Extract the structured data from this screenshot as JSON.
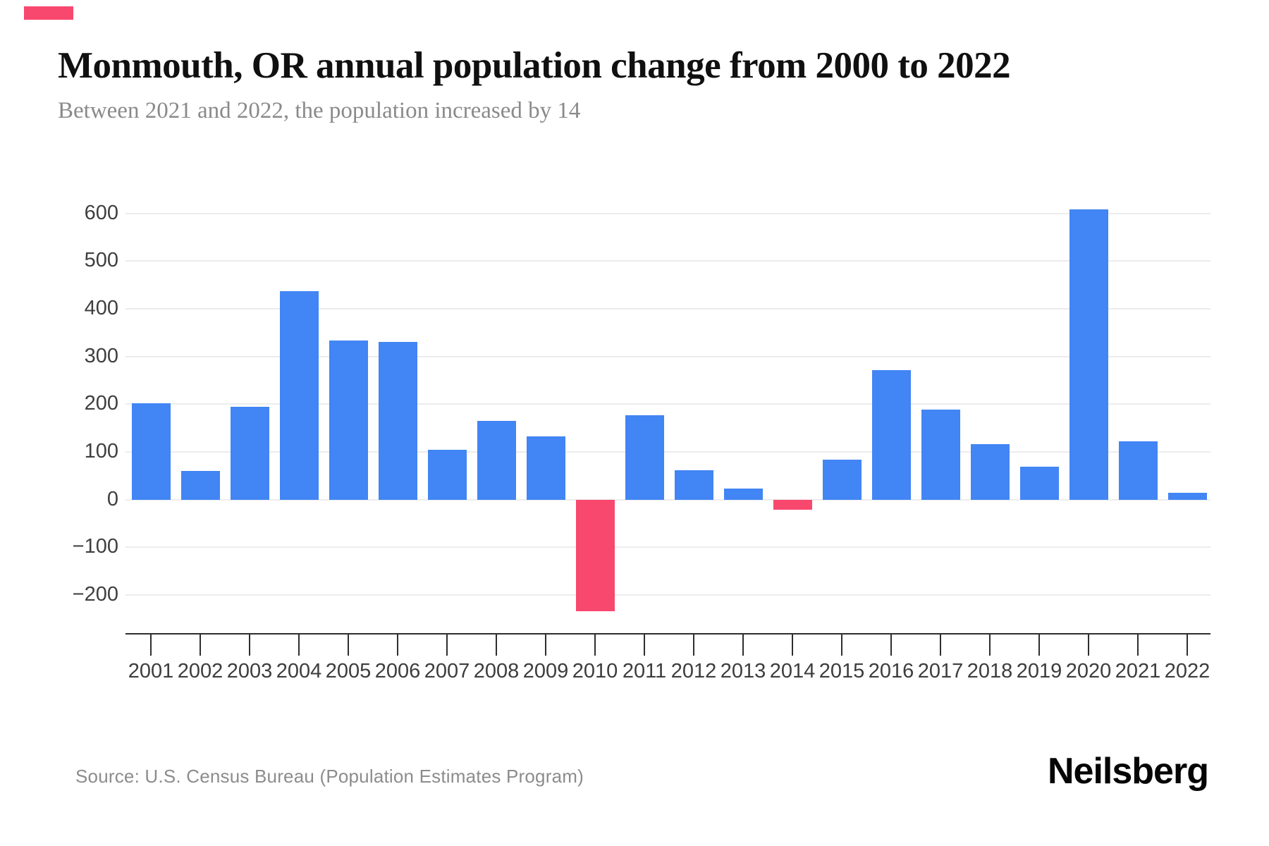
{
  "page": {
    "title": "Monmouth, OR annual population change from 2000 to 2022",
    "subtitle": "Between 2021 and 2022, the population increased by 14",
    "source": "Source: U.S. Census Bureau (Population Estimates Program)",
    "brand": "Neilsberg",
    "accent_color": "#f8486e"
  },
  "chart_data": {
    "type": "bar",
    "title": "Monmouth, OR annual population change from 2000 to 2022",
    "subtitle": "Between 2021 and 2022, the population increased by 14",
    "xlabel": "",
    "ylabel": "",
    "categories": [
      "2001",
      "2002",
      "2003",
      "2004",
      "2005",
      "2006",
      "2007",
      "2008",
      "2009",
      "2010",
      "2011",
      "2012",
      "2013",
      "2014",
      "2015",
      "2016",
      "2017",
      "2018",
      "2019",
      "2020",
      "2021",
      "2022"
    ],
    "values": [
      202,
      60,
      195,
      437,
      333,
      330,
      105,
      165,
      132,
      -234,
      177,
      62,
      23,
      -21,
      83,
      272,
      188,
      116,
      69,
      608,
      122,
      14
    ],
    "yticks": [
      600,
      500,
      400,
      300,
      200,
      100,
      0,
      -100,
      -200
    ],
    "ylim": [
      -280,
      650
    ],
    "grid": true,
    "legend": false,
    "positive_color": "#4285f4",
    "negative_color": "#f8486e",
    "gridline_color": "#ececec",
    "axis_color": "#2e2e2e"
  }
}
